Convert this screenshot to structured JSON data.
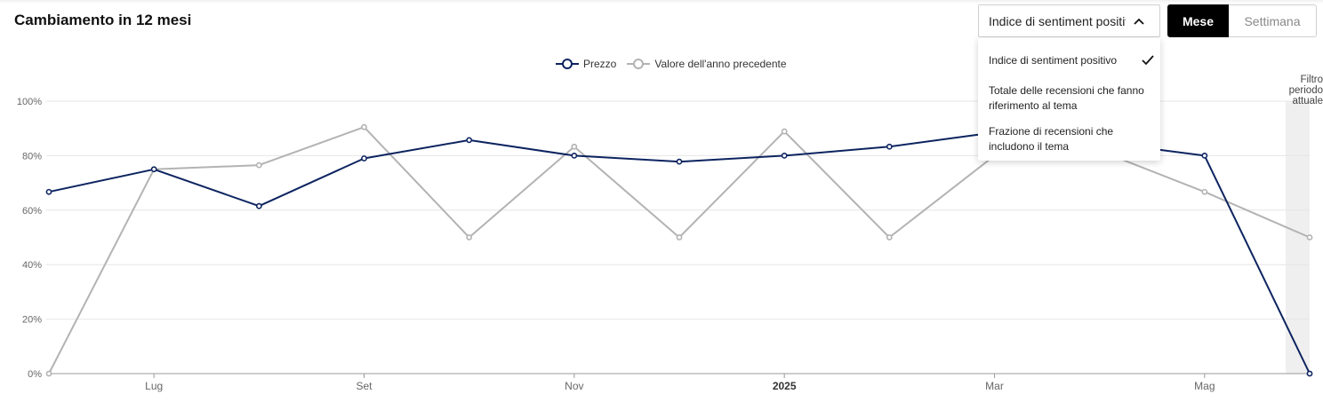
{
  "header": {
    "title": "Cambiamento in 12 mesi"
  },
  "metric_select": {
    "value": "Indice di sentiment positivo",
    "icon": "chevron-up-icon"
  },
  "period_toggle": {
    "options": [
      "Mese",
      "Settimana"
    ],
    "selected": "Mese"
  },
  "dropdown": {
    "options": [
      {
        "label": "Indice di sentiment positivo",
        "selected": true
      },
      {
        "label": "Totale delle recensioni che fanno riferimento al tema",
        "selected": false
      },
      {
        "label": "Frazione di recensioni che includono il tema",
        "selected": false
      }
    ]
  },
  "period_filter": {
    "label": "Filtro periodo attuale"
  },
  "colors": {
    "prezzo": "#0d2460",
    "previous": "#b3b3b3",
    "shade": "#efefef",
    "grid": "#e6e6e6"
  },
  "chart_data": {
    "type": "line",
    "legend": {
      "position": "top-center",
      "entries": [
        "Prezzo",
        "Valore dell'anno precedente"
      ]
    },
    "x": [
      "2024-06",
      "2024-07",
      "2024-08",
      "2024-09",
      "2024-10",
      "2024-11",
      "2024-12",
      "2025-01",
      "2025-02",
      "2025-03",
      "2025-04",
      "2025-05",
      "2025-06"
    ],
    "x_tick_labels": [
      {
        "at": "2024-07",
        "label": "Lug",
        "bold": false
      },
      {
        "at": "2024-09",
        "label": "Set",
        "bold": false
      },
      {
        "at": "2024-11",
        "label": "Nov",
        "bold": false
      },
      {
        "at": "2025-01",
        "label": "2025",
        "bold": true
      },
      {
        "at": "2025-03",
        "label": "Mar",
        "bold": false
      },
      {
        "at": "2025-05",
        "label": "Mag",
        "bold": false
      }
    ],
    "y_ticks": [
      "0%",
      "20%",
      "40%",
      "60%",
      "80%",
      "100%"
    ],
    "ylim": [
      0,
      100
    ],
    "grid": true,
    "series": [
      {
        "name": "Prezzo",
        "values": [
          66.7,
          75,
          61.5,
          79,
          85.7,
          80,
          77.8,
          80,
          83.3,
          88.5,
          85,
          80,
          0
        ]
      },
      {
        "name": "Valore dell'anno precedente",
        "values": [
          0,
          75,
          76.5,
          90.5,
          50,
          83.3,
          50,
          88.9,
          50,
          80,
          81.8,
          66.7,
          50
        ]
      }
    ],
    "highlight_range": [
      "2025-06",
      "2025-06"
    ]
  }
}
